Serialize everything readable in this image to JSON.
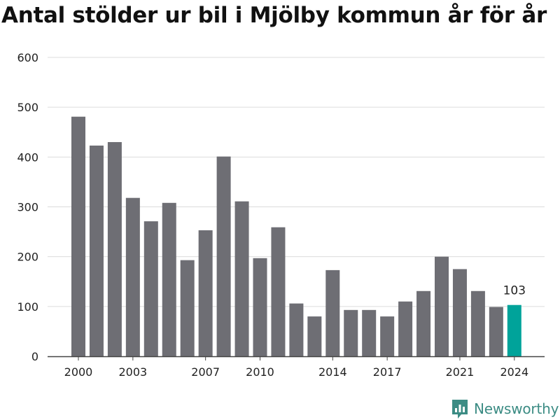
{
  "title": "Antal stölder ur bil i Mjölby kommun år för år",
  "brand": {
    "name": "Newsworthy"
  },
  "colors": {
    "bar": "#6e6e74",
    "highlight": "#00a39a",
    "grid": "#dcdcdc",
    "axis": "#444444",
    "text": "#222222",
    "brand": "#3c8c84"
  },
  "chart_data": {
    "type": "bar",
    "title": "Antal stölder ur bil i Mjölby kommun år för år",
    "categories": [
      2000,
      2001,
      2002,
      2003,
      2004,
      2005,
      2006,
      2007,
      2008,
      2009,
      2010,
      2011,
      2012,
      2013,
      2014,
      2015,
      2016,
      2017,
      2018,
      2019,
      2020,
      2021,
      2022,
      2023,
      2024
    ],
    "values": [
      481,
      423,
      430,
      318,
      271,
      308,
      193,
      253,
      401,
      311,
      197,
      259,
      106,
      80,
      173,
      93,
      93,
      80,
      110,
      131,
      200,
      175,
      131,
      99,
      103
    ],
    "x_tick_labels": [
      "2000",
      "2003",
      "2007",
      "2010",
      "2014",
      "2017",
      "2021",
      "2024"
    ],
    "y_ticks": [
      0,
      100,
      200,
      300,
      400,
      500,
      600
    ],
    "ylim": [
      0,
      600
    ],
    "highlight_category": 2024,
    "data_labels": [
      {
        "category": 2024,
        "text": "103"
      }
    ],
    "xlabel": "",
    "ylabel": "",
    "grid": true,
    "legend": "none"
  }
}
